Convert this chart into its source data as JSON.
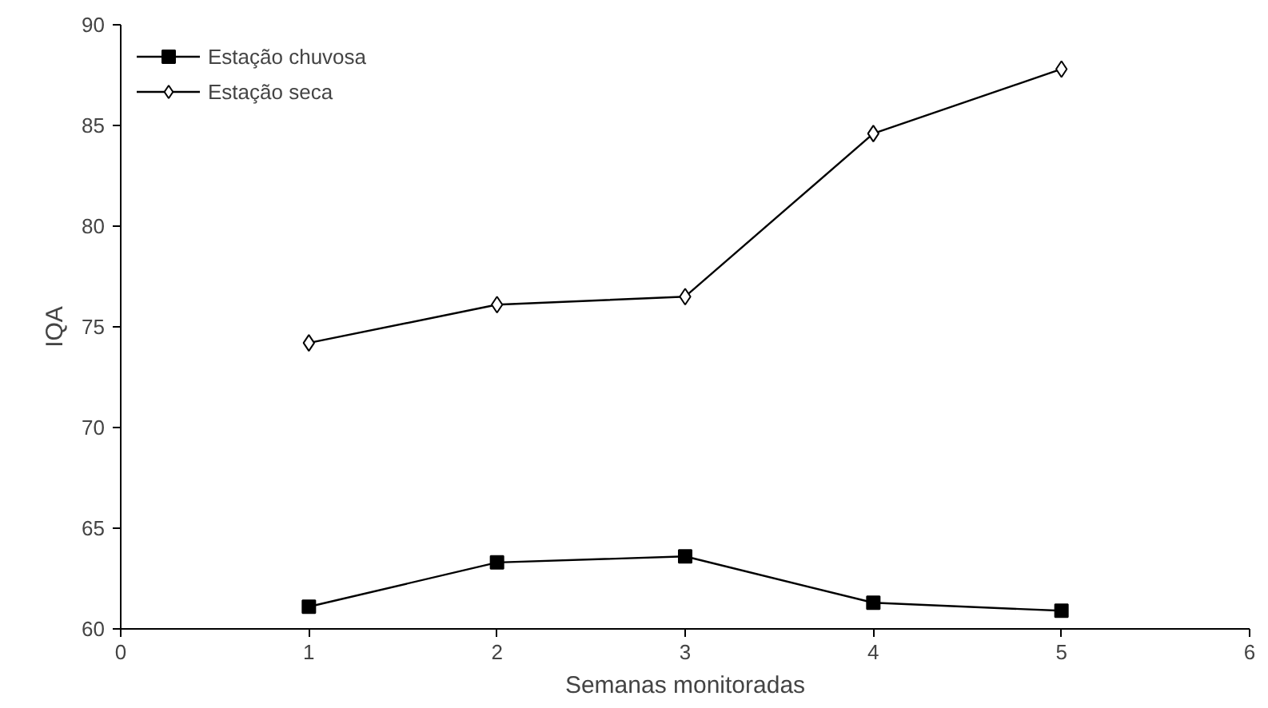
{
  "chart_data": {
    "type": "line",
    "xlabel": "Semanas monitoradas",
    "ylabel": "IQA",
    "x": [
      1,
      2,
      3,
      4,
      5
    ],
    "xlim": [
      0,
      6
    ],
    "xticks": [
      0,
      1,
      2,
      3,
      4,
      5,
      6
    ],
    "ylim": [
      60,
      90
    ],
    "yticks": [
      60,
      65,
      70,
      75,
      80,
      85,
      90
    ],
    "grid": false,
    "legend": "top left",
    "line_style": "solid",
    "series": [
      {
        "name": "Estação chuvosa",
        "color": "#000000",
        "marker": "square",
        "values": [
          61.1,
          63.3,
          63.6,
          61.3,
          60.9
        ]
      },
      {
        "name": "Estação seca",
        "color": "#000000",
        "marker": "diamond",
        "values": [
          74.2,
          76.1,
          76.5,
          84.6,
          87.8
        ]
      }
    ]
  }
}
